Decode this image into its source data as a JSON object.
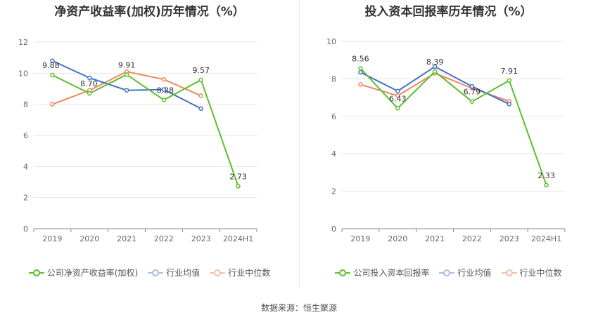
{
  "source": "数据来源：恒生聚源",
  "chart_data": [
    {
      "type": "line",
      "title": "净资产收益率(加权)历年情况（%）",
      "categories": [
        "2019",
        "2020",
        "2021",
        "2022",
        "2023",
        "2024H1"
      ],
      "ylim": [
        0,
        12
      ],
      "yticks": [
        0,
        2,
        4,
        6,
        8,
        10,
        12
      ],
      "grid": true,
      "legend_position": "bottom",
      "series": [
        {
          "name": "公司净资产收益率(加权)",
          "color": "#5cbf2a",
          "values": [
            9.88,
            8.7,
            9.91,
            8.28,
            9.57,
            2.73
          ],
          "labels": [
            "9.88",
            "8.70",
            "9.91",
            "8.28",
            "9.57",
            "2.73"
          ]
        },
        {
          "name": "行业均值",
          "color": "#4472c4",
          "values": [
            10.8,
            9.7,
            8.9,
            8.95,
            7.72,
            null
          ]
        },
        {
          "name": "行业中位数",
          "color": "#ed8761",
          "values": [
            8.0,
            8.9,
            10.1,
            9.6,
            8.55,
            null
          ]
        }
      ]
    },
    {
      "type": "line",
      "title": "投入资本回报率历年情况（%）",
      "categories": [
        "2019",
        "2020",
        "2021",
        "2022",
        "2023",
        "2024H1"
      ],
      "ylim": [
        0,
        10
      ],
      "yticks": [
        0,
        2,
        4,
        6,
        8,
        10
      ],
      "grid": true,
      "legend_position": "bottom",
      "series": [
        {
          "name": "公司投入资本回报率",
          "color": "#5cbf2a",
          "values": [
            8.56,
            6.43,
            8.39,
            6.79,
            7.91,
            2.33
          ],
          "labels": [
            "8.56",
            "6.43",
            "8.39",
            "6.79",
            "7.91",
            "2.33"
          ]
        },
        {
          "name": "行业均值",
          "color": "#4472c4",
          "values": [
            8.35,
            7.35,
            8.65,
            7.6,
            6.65,
            null
          ]
        },
        {
          "name": "行业中位数",
          "color": "#ed8761",
          "values": [
            7.7,
            7.1,
            8.3,
            7.5,
            6.8,
            null
          ]
        }
      ]
    }
  ]
}
